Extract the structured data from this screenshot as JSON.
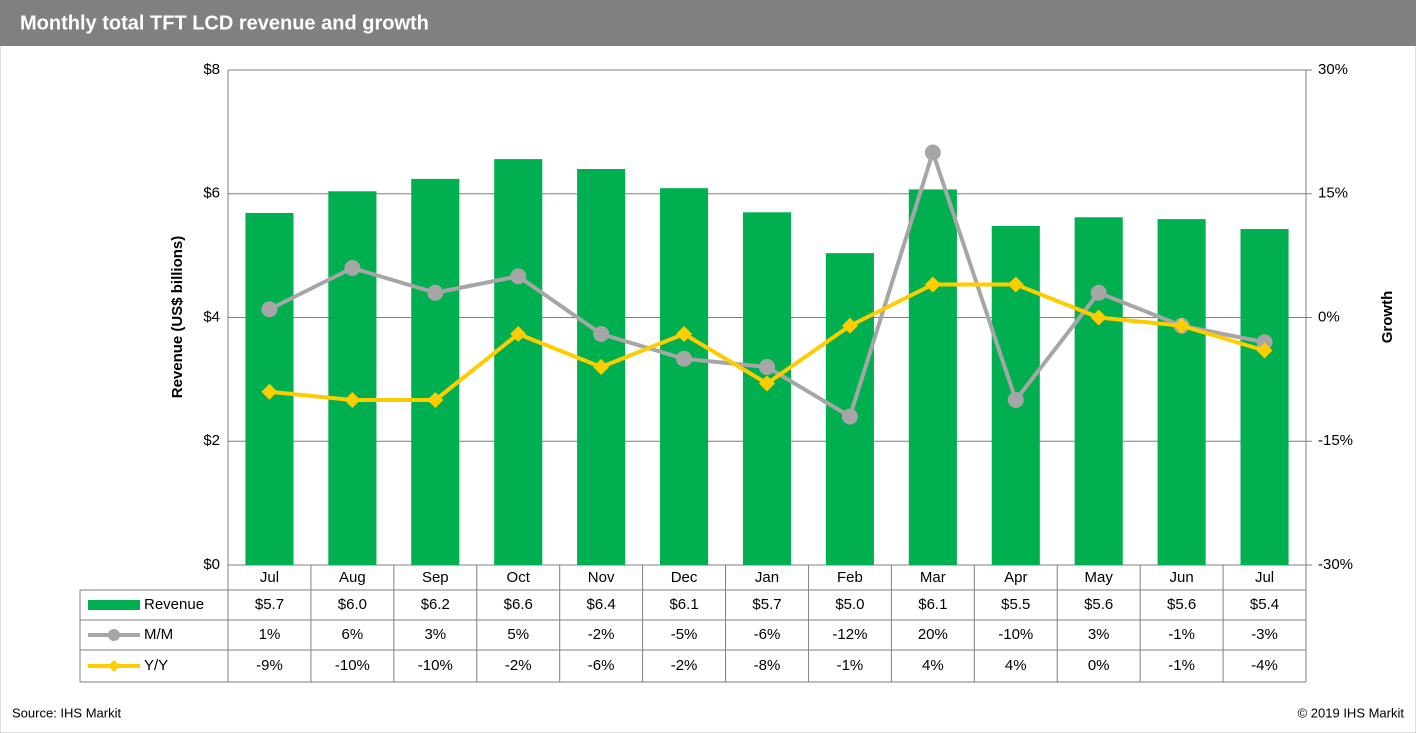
{
  "chart_data": {
    "type": "bar",
    "title": "Monthly total TFT LCD revenue and growth",
    "ylabel": "Revenue (US$ billions)",
    "y2label": "Growth",
    "source": "Source: IHS Markit",
    "copyright": "© 2019 IHS Markit",
    "categories": [
      "Jul",
      "Aug",
      "Sep",
      "Oct",
      "Nov",
      "Dec",
      "Jan",
      "Feb",
      "Mar",
      "Apr",
      "May",
      "Jun",
      "Jul"
    ],
    "ylim": [
      0,
      8
    ],
    "yticks": [
      {
        "value": 0,
        "label": "$0"
      },
      {
        "value": 2,
        "label": "$2"
      },
      {
        "value": 4,
        "label": "$4"
      },
      {
        "value": 6,
        "label": "$6"
      },
      {
        "value": 8,
        "label": "$8"
      }
    ],
    "y2lim": [
      -30,
      30
    ],
    "y2ticks": [
      {
        "value": -30,
        "label": "-30%"
      },
      {
        "value": -15,
        "label": "-15%"
      },
      {
        "value": 0,
        "label": "0%"
      },
      {
        "value": 15,
        "label": "15%"
      },
      {
        "value": 30,
        "label": "30%"
      }
    ],
    "grid": true,
    "series": [
      {
        "name": "Revenue",
        "type": "bar",
        "color": "#00b050",
        "values": [
          5.69,
          6.04,
          6.24,
          6.56,
          6.4,
          6.09,
          5.7,
          5.04,
          6.07,
          5.48,
          5.62,
          5.59,
          5.43
        ],
        "value_labels": [
          "$5.7",
          "$6.0",
          "$6.2",
          "$6.6",
          "$6.4",
          "$6.1",
          "$5.7",
          "$5.0",
          "$6.1",
          "$5.5",
          "$5.6",
          "$5.6",
          "$5.4"
        ]
      },
      {
        "name": "M/M",
        "type": "line",
        "marker": "circle",
        "axis": "y2",
        "color": "#a6a6a6",
        "values": [
          1,
          6,
          3,
          5,
          -2,
          -5,
          -6,
          -12,
          20,
          -10,
          3,
          -1,
          -3
        ],
        "value_labels": [
          "1%",
          "6%",
          "3%",
          "5%",
          "-2%",
          "-5%",
          "-6%",
          "-12%",
          "20%",
          "-10%",
          "3%",
          "-1%",
          "-3%"
        ]
      },
      {
        "name": "Y/Y",
        "type": "line",
        "marker": "diamond",
        "axis": "y2",
        "color": "#ffcc00",
        "values": [
          -9,
          -10,
          -10,
          -2,
          -6,
          -2,
          -8,
          -1,
          4,
          4,
          0,
          -1,
          -4
        ],
        "value_labels": [
          "-9%",
          "-10%",
          "-10%",
          "-2%",
          "-6%",
          "-2%",
          "-8%",
          "-1%",
          "4%",
          "4%",
          "0%",
          "-1%",
          "-4%"
        ]
      }
    ]
  }
}
